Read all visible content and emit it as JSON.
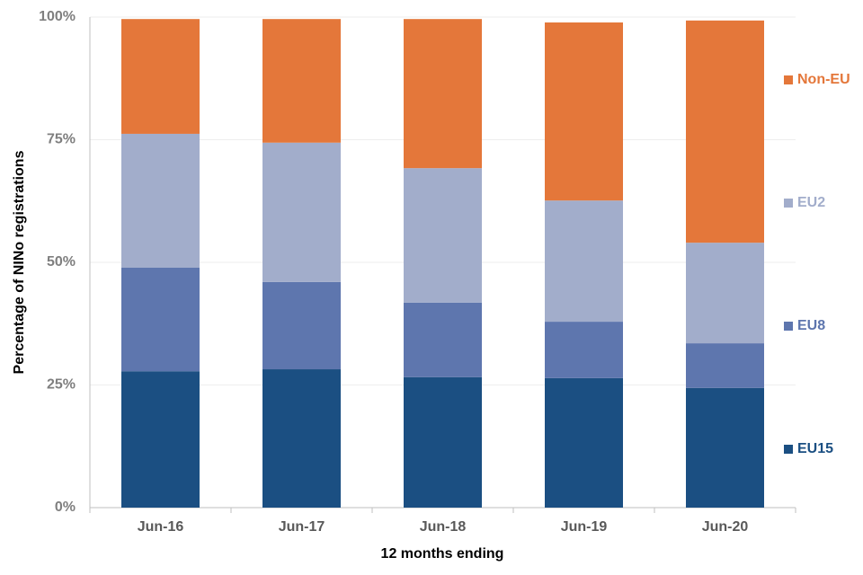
{
  "chart_data": {
    "type": "stacked_bar",
    "x_label": "12 months ending",
    "y_label": "Percentage of NINo registrations",
    "categories": [
      "Jun-16",
      "Jun-17",
      "Jun-18",
      "Jun-19",
      "Jun-20"
    ],
    "series": [
      {
        "name": "EU15",
        "color": "#1b4f82",
        "values": [
          27.8,
          28.2,
          26.6,
          26.4,
          24.4
        ]
      },
      {
        "name": "EU8",
        "color": "#5e76ae",
        "values": [
          21.1,
          17.8,
          15.2,
          11.5,
          9.1
        ]
      },
      {
        "name": "EU2",
        "color": "#a2adcb",
        "values": [
          27.3,
          28.4,
          27.4,
          24.7,
          20.5
        ]
      },
      {
        "name": "Non-EU",
        "color": "#e4773a",
        "values": [
          23.4,
          25.2,
          30.4,
          36.3,
          45.3
        ]
      }
    ],
    "ylim": [
      0,
      100
    ],
    "yticks": [
      {
        "value": 0,
        "label": "0%"
      },
      {
        "value": 25,
        "label": "25%"
      },
      {
        "value": 50,
        "label": "50%"
      },
      {
        "value": 75,
        "label": "75%"
      },
      {
        "value": 100,
        "label": "100%"
      }
    ],
    "grid": true,
    "legend": "right"
  }
}
